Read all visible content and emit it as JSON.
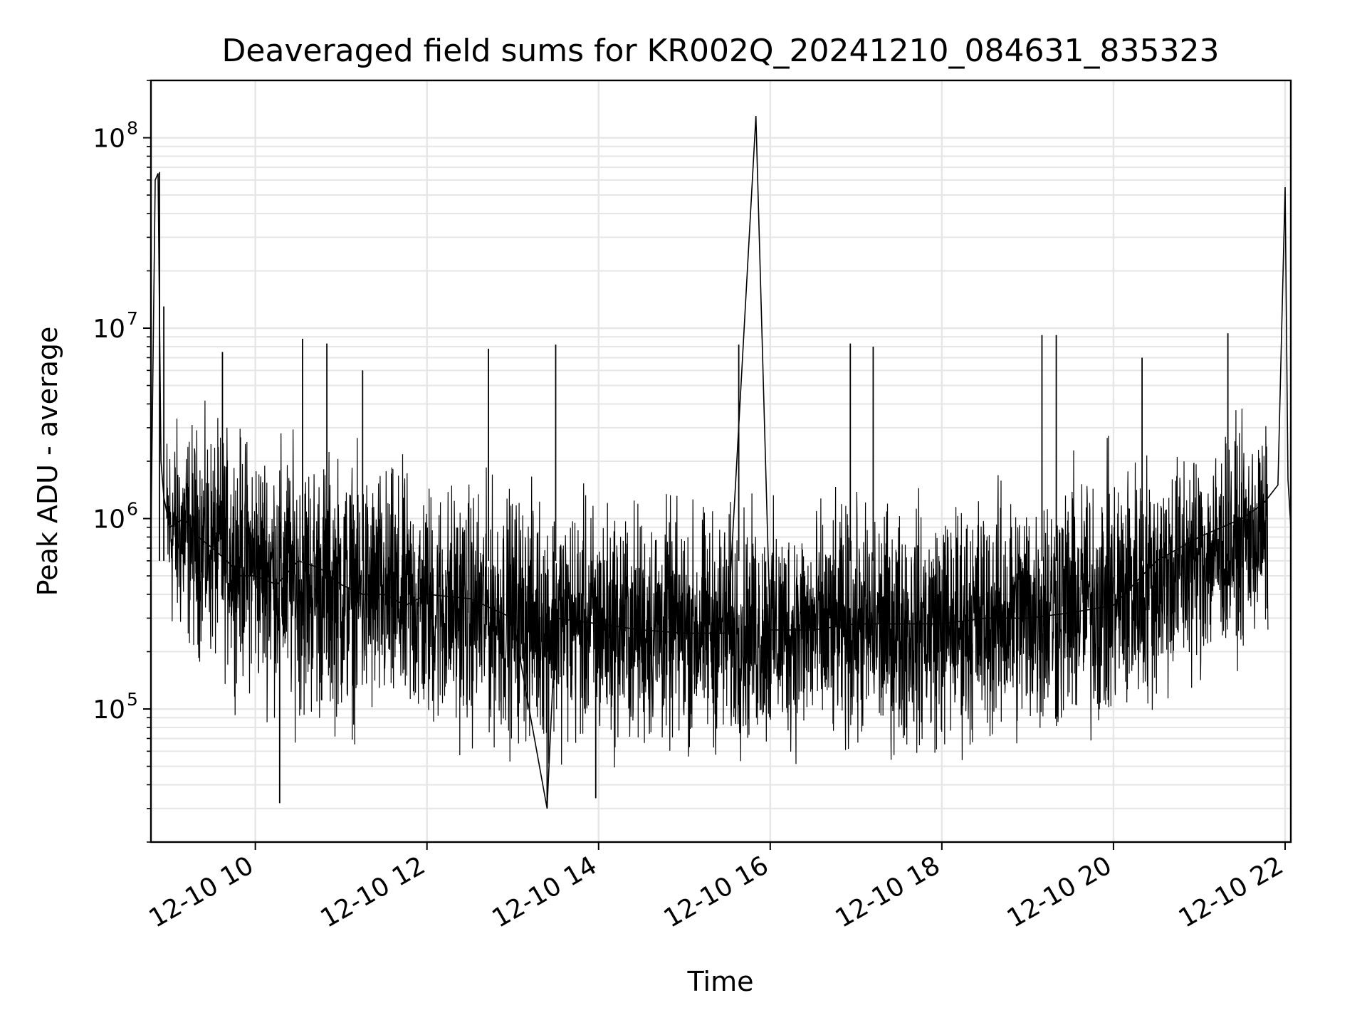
{
  "chart_data": {
    "type": "line",
    "title": "Deaveraged field sums for KR002Q_20241210_084631_835323",
    "xlabel": "Time",
    "ylabel": "Peak ADU - average",
    "yscale": "log",
    "ylim": [
      20000,
      200000000
    ],
    "xlim": [
      "2024-12-10 08:47",
      "2024-12-10 22:04"
    ],
    "grid": true,
    "line_color": "#000000",
    "grid_color": "#e6e6e6",
    "x_ticks": [
      {
        "value": "2024-12-10 10:00",
        "label": "12-10 10"
      },
      {
        "value": "2024-12-10 12:00",
        "label": "12-10 12"
      },
      {
        "value": "2024-12-10 14:00",
        "label": "12-10 14"
      },
      {
        "value": "2024-12-10 16:00",
        "label": "12-10 16"
      },
      {
        "value": "2024-12-10 18:00",
        "label": "12-10 18"
      },
      {
        "value": "2024-12-10 20:00",
        "label": "12-10 20"
      },
      {
        "value": "2024-12-10 22:00",
        "label": "12-10 22"
      }
    ],
    "y_ticks": [
      {
        "value": 100000,
        "base": "10",
        "exp": "5"
      },
      {
        "value": 1000000,
        "base": "10",
        "exp": "6"
      },
      {
        "value": 10000000,
        "base": "10",
        "exp": "7"
      },
      {
        "value": 100000000,
        "base": "10",
        "exp": "8"
      }
    ],
    "series": [
      {
        "x": [
          "2024-12-10 08:47",
          "2024-12-10 08:50",
          "2024-12-10 08:52",
          "2024-12-10 08:54",
          "2024-12-10 08:56",
          "2024-12-10 09:00",
          "2024-12-10 09:10",
          "2024-12-10 09:20",
          "2024-12-10 09:30",
          "2024-12-10 09:40",
          "2024-12-10 09:50",
          "2024-12-10 10:00",
          "2024-12-10 10:15",
          "2024-12-10 10:30",
          "2024-12-10 10:45",
          "2024-12-10 11:00",
          "2024-12-10 11:15",
          "2024-12-10 11:30",
          "2024-12-10 11:45",
          "2024-12-10 12:00",
          "2024-12-10 12:30",
          "2024-12-10 13:00",
          "2024-12-10 13:24",
          "2024-12-10 13:30",
          "2024-12-10 14:00",
          "2024-12-10 14:30",
          "2024-12-10 15:00",
          "2024-12-10 15:30",
          "2024-12-10 15:50",
          "2024-12-10 16:00",
          "2024-12-10 16:30",
          "2024-12-10 17:00",
          "2024-12-10 17:30",
          "2024-12-10 18:00",
          "2024-12-10 18:30",
          "2024-12-10 19:00",
          "2024-12-10 19:30",
          "2024-12-10 20:00",
          "2024-12-10 20:30",
          "2024-12-10 21:00",
          "2024-12-10 21:30",
          "2024-12-10 21:45",
          "2024-12-10 21:55",
          "2024-12-10 22:00",
          "2024-12-10 22:02",
          "2024-12-10 22:04"
        ],
        "y": [
          800000,
          60000000,
          65000000,
          2000000,
          1300000,
          900000,
          1000000,
          800000,
          700000,
          600000,
          500000,
          500000,
          450000,
          600000,
          550000,
          450000,
          400000,
          400000,
          350000,
          400000,
          380000,
          300000,
          30000,
          300000,
          280000,
          260000,
          250000,
          250000,
          130000000,
          260000,
          260000,
          280000,
          280000,
          280000,
          300000,
          300000,
          320000,
          350000,
          600000,
          800000,
          1000000,
          1200000,
          1500000,
          55000000,
          1600000,
          900000
        ]
      }
    ],
    "noise_envelope": [
      {
        "x": "2024-12-10 09:00",
        "high": 4000000,
        "low": 200000
      },
      {
        "x": "2024-12-10 10:30",
        "high": 3000000,
        "low": 70000
      },
      {
        "x": "2024-12-10 12:00",
        "high": 2000000,
        "low": 60000
      },
      {
        "x": "2024-12-10 14:00",
        "high": 1500000,
        "low": 50000
      },
      {
        "x": "2024-12-10 16:00",
        "high": 1300000,
        "low": 50000
      },
      {
        "x": "2024-12-10 18:00",
        "high": 1500000,
        "low": 50000
      },
      {
        "x": "2024-12-10 20:00",
        "high": 2500000,
        "low": 60000
      },
      {
        "x": "2024-12-10 21:40",
        "high": 3500000,
        "low": 200000
      }
    ],
    "spikes": [
      {
        "x": "2024-12-10 08:53",
        "y": 66000000
      },
      {
        "x": "2024-12-10 08:56",
        "y": 13000000
      },
      {
        "x": "2024-12-10 09:37",
        "y": 7500000
      },
      {
        "x": "2024-12-10 10:33",
        "y": 8800000
      },
      {
        "x": "2024-12-10 10:50",
        "y": 8300000
      },
      {
        "x": "2024-12-10 11:15",
        "y": 6000000
      },
      {
        "x": "2024-12-10 12:43",
        "y": 7800000
      },
      {
        "x": "2024-12-10 13:30",
        "y": 8200000
      },
      {
        "x": "2024-12-10 15:38",
        "y": 8200000
      },
      {
        "x": "2024-12-10 16:56",
        "y": 8300000
      },
      {
        "x": "2024-12-10 17:12",
        "y": 8000000
      },
      {
        "x": "2024-12-10 19:10",
        "y": 9200000
      },
      {
        "x": "2024-12-10 19:20",
        "y": 9200000
      },
      {
        "x": "2024-12-10 20:20",
        "y": 7000000
      },
      {
        "x": "2024-12-10 21:20",
        "y": 9400000
      },
      {
        "x": "2024-12-10 10:17",
        "y": 32000
      },
      {
        "x": "2024-12-10 13:24",
        "y": 30000
      },
      {
        "x": "2024-12-10 13:58",
        "y": 34000
      }
    ]
  }
}
